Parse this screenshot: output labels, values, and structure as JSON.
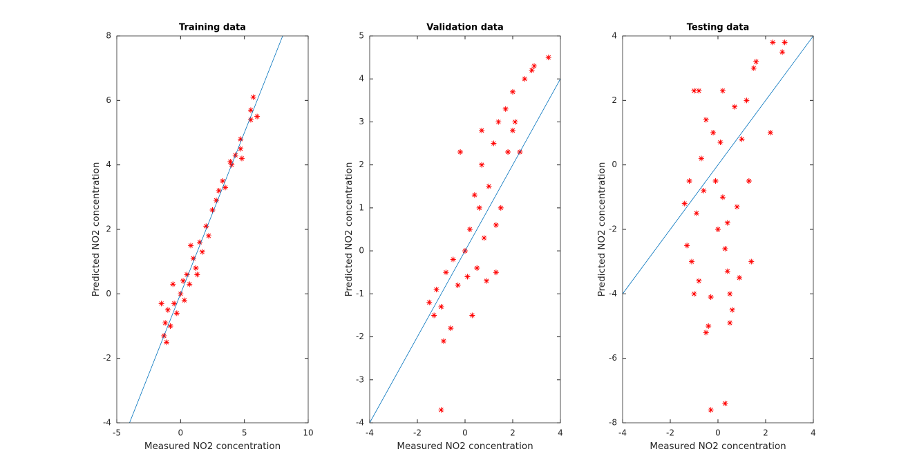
{
  "chart_data": [
    {
      "type": "scatter",
      "title": "Training data",
      "x_label": "Measured NO2 concentration",
      "y_label": "Predicted NO2 concentration",
      "xlim": [
        -5,
        10
      ],
      "ylim": [
        -4,
        8
      ],
      "xticks": [
        -5,
        0,
        5,
        10
      ],
      "yticks": [
        -4,
        -2,
        0,
        2,
        4,
        6,
        8
      ],
      "box": true,
      "series": [
        {
          "type": "scatter",
          "marker": "*",
          "color": "#ff0000",
          "x": [
            -1.3,
            -1.2,
            -1.1,
            -1,
            -0.8,
            -0.5,
            -0.3,
            0,
            0.2,
            0.3,
            0.5,
            0.7,
            1,
            1.2,
            1.5,
            1.7,
            2,
            2.2,
            2.5,
            2.8,
            3,
            3.3,
            3.5,
            4,
            4.3,
            4.7,
            4.7,
            4.8,
            5.5,
            5.7,
            6,
            5.5,
            -1.5,
            -0.6,
            0.8,
            1.3,
            3.9
          ],
          "values": [
            -1.3,
            -0.9,
            -1.5,
            -0.5,
            -1,
            -0.3,
            -0.6,
            0,
            0.4,
            -0.2,
            0.6,
            0.3,
            1.1,
            0.8,
            1.6,
            1.3,
            2.1,
            1.8,
            2.6,
            2.9,
            3.2,
            3.5,
            3.3,
            4,
            4.3,
            4.8,
            4.5,
            4.2,
            5.7,
            6.1,
            5.5,
            5.4,
            -0.3,
            0.3,
            1.5,
            0.6,
            4.1
          ]
        },
        {
          "type": "line",
          "color": "#0072bd",
          "x": [
            -4,
            8
          ],
          "values": [
            -4,
            8
          ]
        }
      ]
    },
    {
      "type": "scatter",
      "title": "Validation data",
      "x_label": "Measured NO2 concentration",
      "y_label": "Predicted NO2 concentration",
      "xlim": [
        -4,
        4
      ],
      "ylim": [
        -4,
        5
      ],
      "xticks": [
        -4,
        -2,
        0,
        2,
        4
      ],
      "yticks": [
        -4,
        -3,
        -2,
        -1,
        0,
        1,
        2,
        3,
        4,
        5
      ],
      "box": true,
      "series": [
        {
          "type": "scatter",
          "marker": "*",
          "color": "#ff0000",
          "x": [
            -1.5,
            -1.3,
            -1.2,
            -1,
            -0.9,
            -0.8,
            -0.6,
            -0.5,
            -0.3,
            -0.2,
            0,
            0.1,
            0.2,
            0.3,
            0.4,
            0.5,
            0.6,
            0.7,
            0.8,
            0.9,
            1,
            1.2,
            1.3,
            1.4,
            1.5,
            1.7,
            1.8,
            2,
            2.1,
            2.3,
            2.5,
            2.8,
            2.9,
            3.5,
            -1,
            1.3,
            0.7,
            2
          ],
          "values": [
            -1.2,
            -1.5,
            -0.9,
            -1.3,
            -2.1,
            -0.5,
            -1.8,
            -0.2,
            -0.8,
            2.3,
            0,
            -0.6,
            0.5,
            -1.5,
            1.3,
            -0.4,
            1,
            2,
            0.3,
            -0.7,
            1.5,
            2.5,
            0.6,
            3,
            1,
            3.3,
            2.3,
            3.7,
            3,
            2.3,
            4,
            4.2,
            4.3,
            4.5,
            -3.7,
            -0.5,
            2.8,
            2.8
          ]
        },
        {
          "type": "line",
          "color": "#0072bd",
          "x": [
            -4,
            4
          ],
          "values": [
            -4,
            4
          ]
        }
      ]
    },
    {
      "type": "scatter",
      "title": "Testing data",
      "x_label": "Measured NO2 concentration",
      "y_label": "Predicted NO2 concentration",
      "xlim": [
        -4,
        4
      ],
      "ylim": [
        -8,
        4
      ],
      "xticks": [
        -4,
        -2,
        0,
        2,
        4
      ],
      "yticks": [
        -8,
        -6,
        -4,
        -2,
        0,
        2,
        4
      ],
      "box": true,
      "series": [
        {
          "type": "scatter",
          "marker": "*",
          "color": "#ff0000",
          "x": [
            -1.4,
            -1.3,
            -1.2,
            -1.1,
            -1,
            -1,
            -0.8,
            -0.9,
            -0.8,
            -0.7,
            -0.6,
            -0.5,
            -0.4,
            -0.3,
            -0.2,
            -0.1,
            0,
            0.1,
            0.2,
            0.3,
            -0.3,
            0.3,
            0.4,
            0.5,
            0.5,
            0.6,
            0.7,
            0.8,
            0.9,
            1,
            1.2,
            1.3,
            1.4,
            1.5,
            1.6,
            2.2,
            2.3,
            2.7,
            2.8,
            -0.5,
            0.4,
            0.2
          ],
          "values": [
            -1.2,
            -2.5,
            -0.5,
            -3,
            -4,
            2.3,
            2.3,
            -1.5,
            -3.6,
            0.2,
            -0.8,
            -5.2,
            -5,
            -4.1,
            1,
            -0.5,
            -2,
            0.7,
            2.3,
            -7.4,
            -7.6,
            -2.6,
            -1.8,
            -4,
            -4.9,
            -4.5,
            1.8,
            -1.3,
            -3.5,
            0.8,
            2,
            -0.5,
            -3,
            3,
            3.2,
            1,
            3.8,
            3.5,
            3.8,
            1.4,
            -3.3,
            -1
          ]
        },
        {
          "type": "line",
          "color": "#0072bd",
          "x": [
            -4,
            4
          ],
          "values": [
            -4,
            4
          ]
        }
      ]
    }
  ]
}
